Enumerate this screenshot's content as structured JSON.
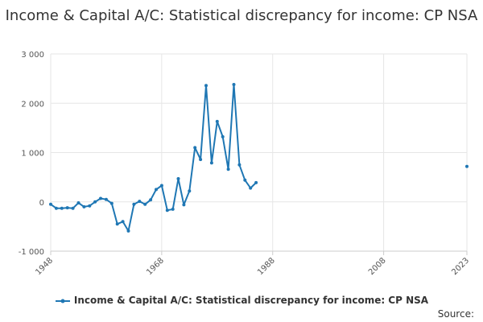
{
  "chart_data": {
    "type": "line",
    "title": "Income & Capital A/C: Statistical discrepancy for income: CP NSA",
    "xlabel": "",
    "ylabel": "",
    "xlim": [
      1948,
      2023
    ],
    "ylim": [
      -1000,
      3000
    ],
    "x_ticks": [
      {
        "value": 1948,
        "label": "1948"
      },
      {
        "value": 1968,
        "label": "1968"
      },
      {
        "value": 1988,
        "label": "1988"
      },
      {
        "value": 2008,
        "label": "2008"
      },
      {
        "value": 2023,
        "label": "2023"
      }
    ],
    "y_ticks": [
      {
        "value": 3000,
        "label": "3 000"
      },
      {
        "value": 2000,
        "label": "2 000"
      },
      {
        "value": 1000,
        "label": "1 000"
      },
      {
        "value": 0,
        "label": "0"
      },
      {
        "value": -1000,
        "label": "-1 000"
      }
    ],
    "grid": "horizontal",
    "legend_position": "bottom",
    "color": "#1f77b4",
    "series": [
      {
        "name": "Income & Capital A/C: Statistical discrepancy for income: CP NSA",
        "x": [
          1948,
          1949,
          1950,
          1951,
          1952,
          1953,
          1954,
          1955,
          1956,
          1957,
          1958,
          1959,
          1960,
          1961,
          1962,
          1963,
          1964,
          1965,
          1966,
          1967,
          1968,
          1969,
          1970,
          1971,
          1972,
          1973,
          1974,
          1975,
          1976,
          1977,
          1978,
          1979,
          1980,
          1981,
          1982,
          1983,
          1984,
          1985,
          1986,
          2023
        ],
        "y": [
          -50,
          -130,
          -130,
          -120,
          -130,
          -20,
          -100,
          -80,
          0,
          70,
          50,
          -30,
          -450,
          -400,
          -590,
          -50,
          10,
          -50,
          40,
          250,
          330,
          -170,
          -150,
          470,
          -60,
          220,
          1100,
          860,
          2360,
          790,
          1630,
          1320,
          660,
          2380,
          750,
          440,
          280,
          390,
          null,
          720
        ]
      }
    ]
  },
  "source": {
    "label": "Source:"
  }
}
